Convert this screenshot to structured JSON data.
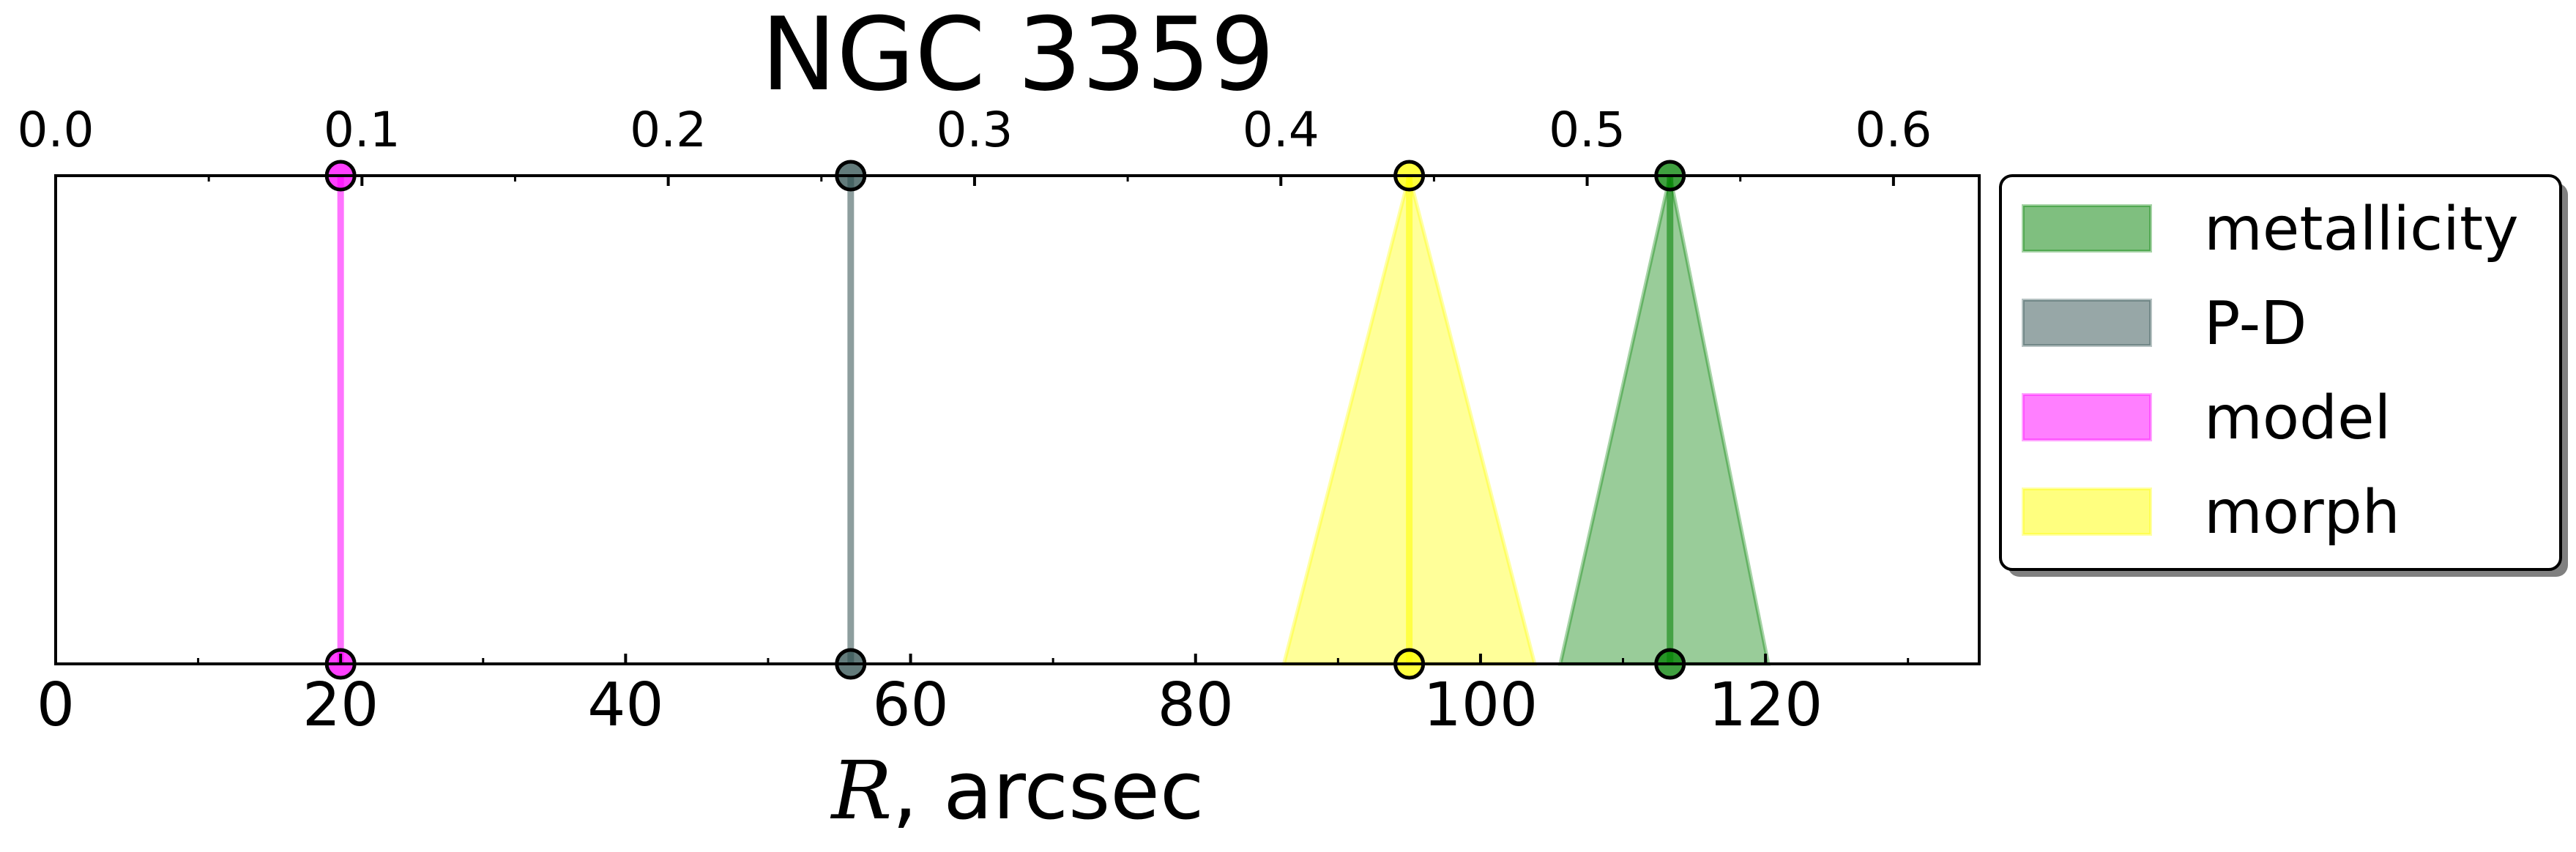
{
  "chart_data": {
    "type": "area",
    "title": "NGC 3359",
    "xlabel_symbol": "R",
    "xlabel_rest": ", arcsec",
    "xlim": [
      0,
      135
    ],
    "xticks": [
      0,
      20,
      40,
      60,
      80,
      100,
      120
    ],
    "top_axis": {
      "ticks": [
        0.0,
        0.1,
        0.2,
        0.3,
        0.4,
        0.5,
        0.6
      ],
      "tick_labels": [
        "0.0",
        "0.1",
        "0.2",
        "0.3",
        "0.4",
        "0.5",
        "0.6"
      ],
      "max_value": 0.628
    },
    "series": [
      {
        "name": "model",
        "center": 20.0,
        "low": 20.0,
        "high": 20.0,
        "color": "#ff00ff"
      },
      {
        "name": "P-D",
        "center": 55.8,
        "low": 55.8,
        "high": 55.8,
        "color": "#2f4f4f"
      },
      {
        "name": "morph",
        "center": 95.0,
        "low": 86.2,
        "high": 103.8,
        "color": "#ffff00"
      },
      {
        "name": "metallicity",
        "center": 113.3,
        "low": 105.6,
        "high": 120.2,
        "color": "#008000"
      }
    ],
    "legend": {
      "placement": "right",
      "entries": [
        {
          "label": "metallicity",
          "color": "#008000"
        },
        {
          "label": "P-D",
          "color": "#2f4f4f"
        },
        {
          "label": "model",
          "color": "#ff00ff"
        },
        {
          "label": "morph",
          "color": "#ffff00"
        }
      ]
    },
    "grid": false
  }
}
